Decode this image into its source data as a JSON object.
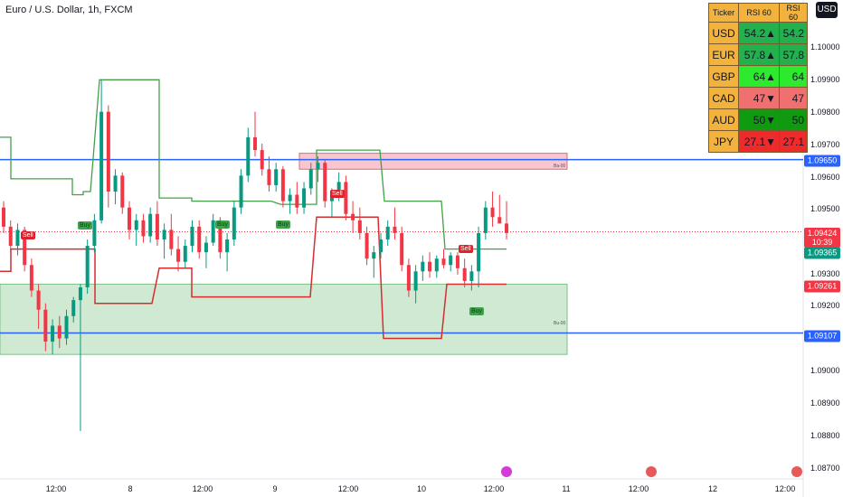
{
  "header": {
    "title": "Euro / U.S. Dollar, 1h, FXCM",
    "currency": "USD"
  },
  "price_axis": {
    "ticks": [
      "1.10000",
      "1.09900",
      "1.09800",
      "1.09700",
      "1.09600",
      "1.09500",
      "1.09300",
      "1.09200",
      "1.09000",
      "1.08900",
      "1.08800",
      "1.08700"
    ],
    "labels": [
      {
        "text": "1.09650",
        "color": "#2962ff"
      },
      {
        "text": "1.09424",
        "sub": "10:39",
        "color": "#f23645"
      },
      {
        "text": "1.09365",
        "color": "#089981"
      },
      {
        "text": "1.09261",
        "color": "#f23645"
      },
      {
        "text": "1.09107",
        "color": "#2962ff"
      }
    ]
  },
  "time_axis": [
    "12:00",
    "8",
    "12:00",
    "9",
    "12:00",
    "10",
    "12:00",
    "11",
    "12:00",
    "12",
    "12:00"
  ],
  "rsi_table": {
    "headers": [
      "Ticker",
      "RSI 60",
      "RSI 60"
    ],
    "rows": [
      {
        "ticker": "USD",
        "val": "54.2▲",
        "val2": "54.2",
        "color": "#22b14c"
      },
      {
        "ticker": "EUR",
        "val": "57.8▲",
        "val2": "57.8",
        "color": "#22b14c"
      },
      {
        "ticker": "GBP",
        "val": "64▲",
        "val2": "64",
        "color": "#2eea2e"
      },
      {
        "ticker": "CAD",
        "val": "47▼",
        "val2": "47",
        "color": "#f07070"
      },
      {
        "ticker": "AUD",
        "val": "50▼",
        "val2": "50",
        "color": "#0f9a0f"
      },
      {
        "ticker": "JPY",
        "val": "27.1▼",
        "val2": "27.1",
        "color": "#ef2a2a"
      }
    ]
  },
  "signals": [
    {
      "text": "Sell",
      "type": "sell"
    },
    {
      "text": "Buy",
      "type": "buy"
    },
    {
      "text": "Buy",
      "type": "buy"
    },
    {
      "text": "Buy",
      "type": "buy"
    },
    {
      "text": "Sell",
      "type": "sell"
    },
    {
      "text": "Sell",
      "type": "sell"
    },
    {
      "text": "Buy",
      "type": "buy"
    }
  ],
  "zones": {
    "supply_label": "Ba-00",
    "demand_label": "Bu-00"
  },
  "colors": {
    "up": "#089981",
    "down": "#f23645",
    "hline": "#2962ff",
    "supply_fill": "#f7c6cf",
    "demand_fill": "#cfe9d2",
    "green_line": "#43a047",
    "red_line": "#d32f2f"
  },
  "chart_data": {
    "type": "candlestick",
    "symbol": "EURUSD",
    "interval": "1h",
    "ylim": [
      1.0865,
      1.1015
    ],
    "horizontal_lines": [
      1.0965,
      1.09107
    ],
    "current_price": 1.09424,
    "countdown": "10:39",
    "zones": [
      {
        "kind": "supply",
        "from": 1.0962,
        "to": 1.0967
      },
      {
        "kind": "demand",
        "from": 1.0904,
        "to": 1.0926
      }
    ],
    "candles": [
      [
        1.095,
        1.0952,
        1.0942,
        1.0944
      ],
      [
        1.0944,
        1.0946,
        1.0936,
        1.0938
      ],
      [
        1.0938,
        1.0945,
        1.0935,
        1.0943
      ],
      [
        1.0943,
        1.0944,
        1.093,
        1.0932
      ],
      [
        1.0932,
        1.0934,
        1.0922,
        1.0924
      ],
      [
        1.0924,
        1.0926,
        1.0912,
        1.0918
      ],
      [
        1.0918,
        1.092,
        1.0905,
        1.0908
      ],
      [
        1.0908,
        1.0915,
        1.0904,
        1.0913
      ],
      [
        1.0913,
        1.0916,
        1.0906,
        1.0909
      ],
      [
        1.0909,
        1.0918,
        1.0907,
        1.0916
      ],
      [
        1.0916,
        1.0922,
        1.0914,
        1.0921
      ],
      [
        1.0921,
        1.0926,
        1.088,
        1.0925
      ],
      [
        1.0925,
        1.094,
        1.0923,
        1.0938
      ],
      [
        1.0938,
        1.0948,
        1.0936,
        1.0946
      ],
      [
        1.0946,
        1.099,
        1.0945,
        1.098
      ],
      [
        1.098,
        1.0982,
        1.095,
        1.0955
      ],
      [
        1.0955,
        1.0962,
        1.0951,
        1.096
      ],
      [
        1.096,
        1.0961,
        1.0948,
        1.095
      ],
      [
        1.095,
        1.0952,
        1.094,
        1.0943
      ],
      [
        1.0943,
        1.0948,
        1.0938,
        1.0946
      ],
      [
        1.0946,
        1.0948,
        1.0939,
        1.0941
      ],
      [
        1.0941,
        1.095,
        1.0939,
        1.0948
      ],
      [
        1.0948,
        1.0952,
        1.0938,
        1.094
      ],
      [
        1.094,
        1.0945,
        1.0934,
        1.0943
      ],
      [
        1.0943,
        1.0948,
        1.0935,
        1.0937
      ],
      [
        1.0937,
        1.0941,
        1.093,
        1.0933
      ],
      [
        1.0933,
        1.094,
        1.0931,
        1.0938
      ],
      [
        1.0938,
        1.0946,
        1.0936,
        1.0944
      ],
      [
        1.0944,
        1.0946,
        1.0934,
        1.0936
      ],
      [
        1.0936,
        1.0941,
        1.0931,
        1.0939
      ],
      [
        1.0939,
        1.0948,
        1.0938,
        1.0946
      ],
      [
        1.0946,
        1.0947,
        1.0934,
        1.0936
      ],
      [
        1.0936,
        1.0942,
        1.093,
        1.094
      ],
      [
        1.094,
        1.0952,
        1.0938,
        1.095
      ],
      [
        1.095,
        1.0962,
        1.0948,
        1.096
      ],
      [
        1.096,
        1.0975,
        1.0958,
        1.0972
      ],
      [
        1.0972,
        1.098,
        1.0966,
        1.0968
      ],
      [
        1.0968,
        1.097,
        1.096,
        1.0962
      ],
      [
        1.0962,
        1.0966,
        1.0955,
        1.0957
      ],
      [
        1.0957,
        1.0964,
        1.0955,
        1.0962
      ],
      [
        1.0962,
        1.0963,
        1.095,
        1.0952
      ],
      [
        1.0952,
        1.0956,
        1.0948,
        1.0954
      ],
      [
        1.0954,
        1.0958,
        1.0948,
        1.095
      ],
      [
        1.095,
        1.0958,
        1.0948,
        1.0956
      ],
      [
        1.0956,
        1.0964,
        1.0954,
        1.0962
      ],
      [
        1.0962,
        1.0966,
        1.0958,
        1.0964
      ],
      [
        1.0964,
        1.0965,
        1.095,
        1.0952
      ],
      [
        1.0952,
        1.0956,
        1.0947,
        1.0954
      ],
      [
        1.0954,
        1.0961,
        1.0952,
        1.0958
      ],
      [
        1.0958,
        1.096,
        1.0946,
        1.0948
      ],
      [
        1.0948,
        1.0952,
        1.0942,
        1.0946
      ],
      [
        1.0946,
        1.095,
        1.094,
        1.0942
      ],
      [
        1.0942,
        1.0944,
        1.0932,
        1.0934
      ],
      [
        1.0934,
        1.0938,
        1.0928,
        1.0936
      ],
      [
        1.0936,
        1.0942,
        1.0934,
        1.094
      ],
      [
        1.094,
        1.0946,
        1.0938,
        1.0944
      ],
      [
        1.0944,
        1.095,
        1.094,
        1.0942
      ],
      [
        1.0942,
        1.0944,
        1.093,
        1.0932
      ],
      [
        1.0932,
        1.0934,
        1.0922,
        1.0924
      ],
      [
        1.0924,
        1.0932,
        1.092,
        1.093
      ],
      [
        1.093,
        1.0935,
        1.0927,
        1.0933
      ],
      [
        1.0933,
        1.0936,
        1.0928,
        1.093
      ],
      [
        1.093,
        1.0935,
        1.0928,
        1.0934
      ],
      [
        1.0934,
        1.0937,
        1.0931,
        1.0932
      ],
      [
        1.0932,
        1.0936,
        1.093,
        1.0935
      ],
      [
        1.0935,
        1.0936,
        1.0929,
        1.0931
      ],
      [
        1.0931,
        1.0934,
        1.0925,
        1.0927
      ],
      [
        1.0927,
        1.0932,
        1.0924,
        1.093
      ],
      [
        1.093,
        1.0944,
        1.0925,
        1.0942
      ],
      [
        1.0942,
        1.0952,
        1.094,
        1.095
      ],
      [
        1.095,
        1.0955,
        1.0944,
        1.0947
      ],
      [
        1.0947,
        1.0954,
        1.0945,
        1.0945
      ],
      [
        1.0945,
        1.0952,
        1.094,
        1.0942
      ]
    ]
  }
}
